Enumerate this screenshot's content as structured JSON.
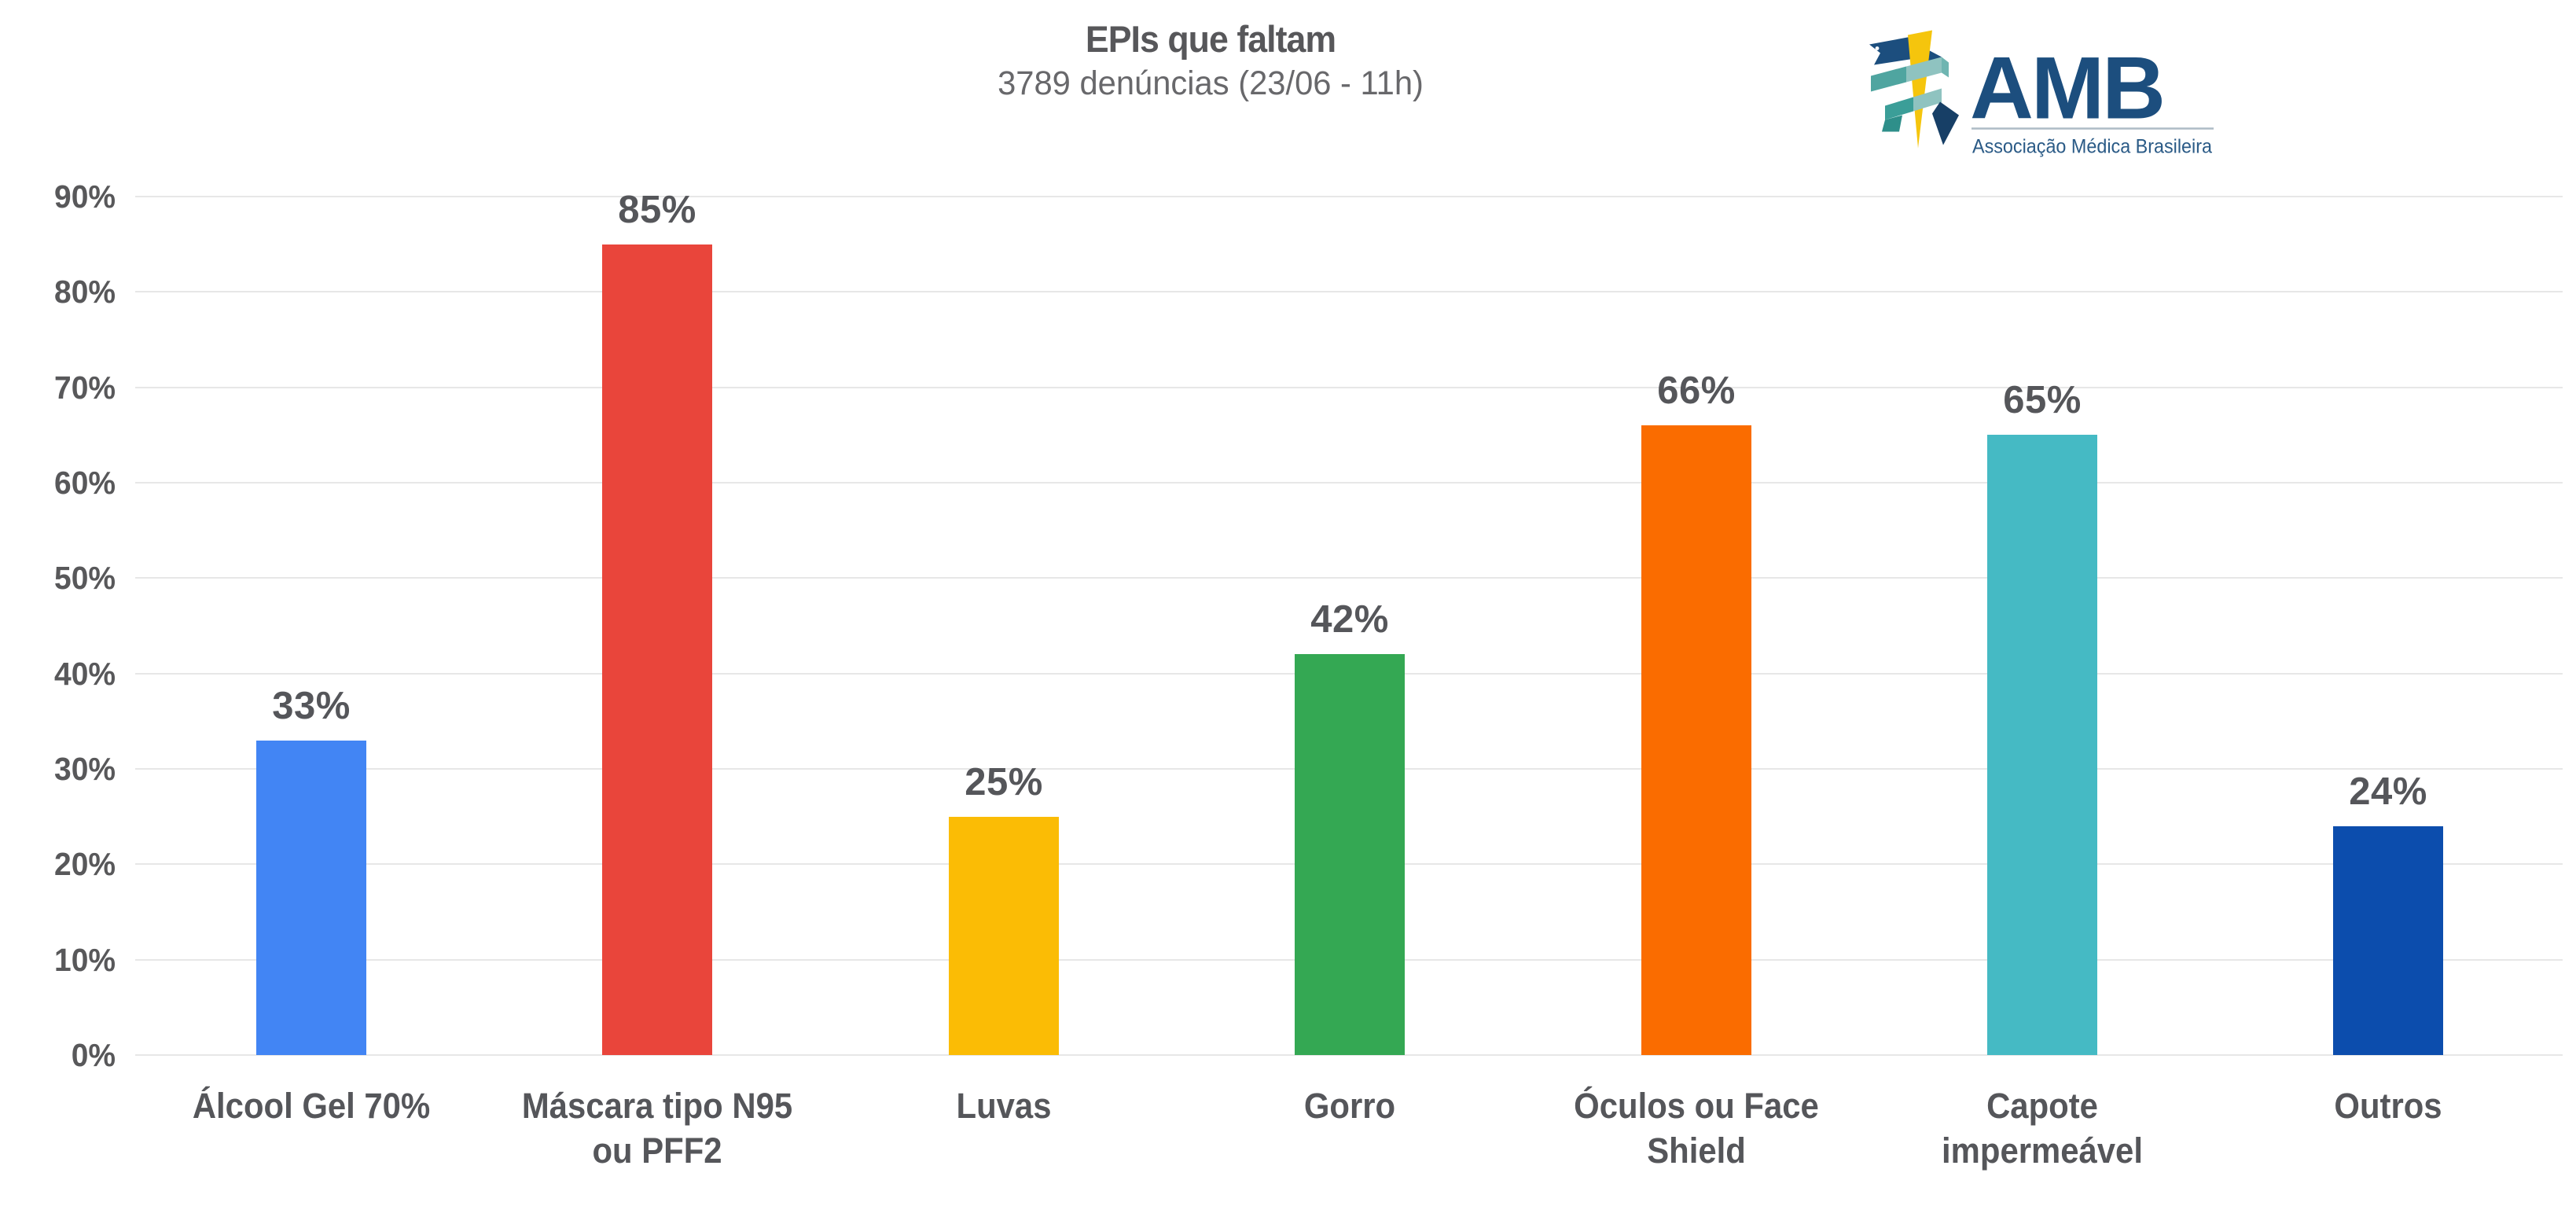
{
  "header": {
    "title": "EPIs que faltam",
    "subtitle": "3789 denúncias (23/06 - 11h)"
  },
  "logo": {
    "acronym": "AMB",
    "full_name": "Associação Médica Brasileira",
    "navy": "#1C4E7E",
    "yellow": "#F5C50D",
    "teal_dark": "#3B9E98",
    "teal_light": "#8FC3C0"
  },
  "chart_data": {
    "type": "bar",
    "title": "EPIs que faltam",
    "subtitle": "3789 denúncias (23/06 - 11h)",
    "categories": [
      "Álcool Gel 70%",
      "Máscara tipo N95 ou PFF2",
      "Luvas",
      "Gorro",
      "Óculos ou Face Shield",
      "Capote impermeável",
      "Outros"
    ],
    "category_lines": [
      [
        "Álcool Gel 70%",
        ""
      ],
      [
        "Máscara tipo N95",
        "ou PFF2"
      ],
      [
        "Luvas",
        ""
      ],
      [
        "Gorro",
        ""
      ],
      [
        "Óculos ou Face",
        "Shield"
      ],
      [
        "Capote",
        "impermeável"
      ],
      [
        "Outros",
        ""
      ]
    ],
    "values": [
      33,
      85,
      25,
      42,
      66,
      65,
      24
    ],
    "value_labels": [
      "33%",
      "85%",
      "25%",
      "42%",
      "66%",
      "65%",
      "24%"
    ],
    "bar_colors": [
      "#4285F4",
      "#E9453B",
      "#FBBC05",
      "#34A853",
      "#FA6C00",
      "#45BAC4",
      "#0C4DAD"
    ],
    "yticks": [
      "0%",
      "10%",
      "20%",
      "30%",
      "40%",
      "50%",
      "60%",
      "70%",
      "80%",
      "90%"
    ],
    "ylim": [
      0,
      90
    ],
    "xlabel": "",
    "ylabel": "",
    "grid": true,
    "legend": false,
    "gridline_color": "#E7E7E7",
    "label_color": "#55565A"
  }
}
